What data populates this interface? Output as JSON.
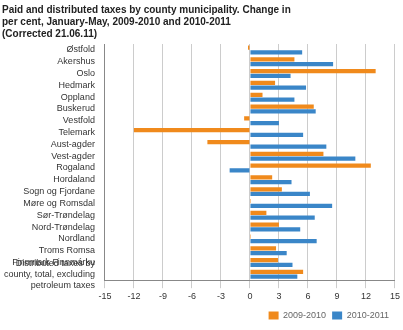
{
  "chart_data": {
    "type": "bar",
    "orientation": "horizontal",
    "title": [
      "Paid and distributed taxes by county municipality. Change in",
      "per cent, January-May, 2009-2010 and 2010-2011",
      "(Corrected 21.06.11)"
    ],
    "categories": [
      "Østfold",
      "Akershus",
      "Oslo",
      "Hedmark",
      "Oppland",
      "Buskerud",
      "Vestfold",
      "Telemark",
      "Aust-agder",
      "Vest-agder",
      "Rogaland",
      "Hordaland",
      "Sogn og Fjordane",
      "Møre og Romsdal",
      "Sør-Trøndelag",
      "Nord-Trøndelag",
      "Nordland",
      "Troms Romsa",
      "Finnmark Finnmárku",
      [
        "Distributed taxes by",
        "county, total, excluding",
        "petroleum taxes"
      ]
    ],
    "series": [
      {
        "name": "2009-2010",
        "color": "#f08a1c",
        "values": [
          -0.2,
          4.6,
          13.0,
          2.6,
          1.3,
          6.6,
          -0.6,
          -12.0,
          -4.4,
          7.6,
          12.5,
          2.3,
          3.3,
          0.1,
          1.7,
          3.0,
          0.1,
          2.7,
          2.9,
          5.5
        ]
      },
      {
        "name": "2010-2011",
        "color": "#3a86c8",
        "values": [
          5.4,
          8.6,
          4.2,
          5.8,
          4.6,
          6.8,
          3.0,
          5.5,
          7.9,
          10.9,
          -2.1,
          4.3,
          6.2,
          8.5,
          6.7,
          5.2,
          6.9,
          3.8,
          4.4,
          4.9
        ]
      }
    ],
    "xlim": [
      -15,
      15
    ],
    "xticks": [
      -15,
      -12,
      -9,
      -6,
      -3,
      0,
      3,
      6,
      9,
      12,
      15
    ],
    "grid": true,
    "legend": "bottom"
  }
}
